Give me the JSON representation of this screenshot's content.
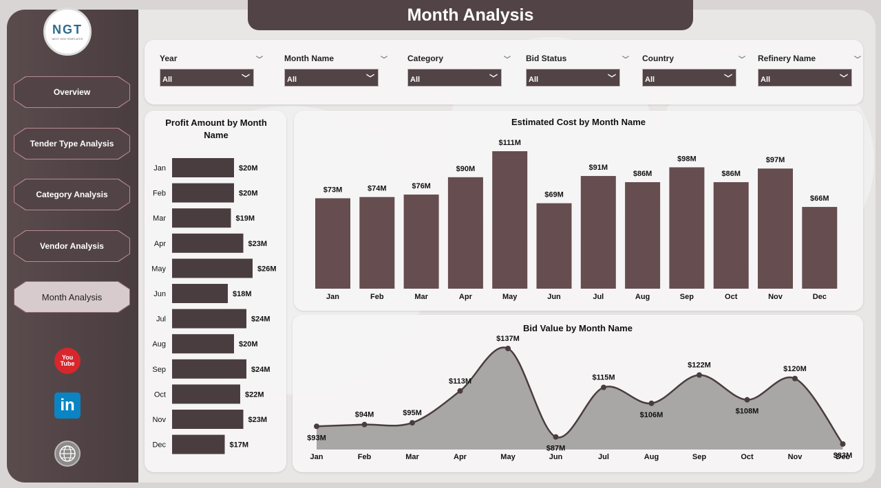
{
  "page_title": "Month Analysis",
  "logo": {
    "text": "NGT",
    "subtext": "NEXT GEN TEMPLATES"
  },
  "nav": [
    {
      "label": "Overview",
      "active": false
    },
    {
      "label": "Tender Type Analysis",
      "active": false
    },
    {
      "label": "Category Analysis",
      "active": false
    },
    {
      "label": "Vendor Analysis",
      "active": false
    },
    {
      "label": "Month Analysis",
      "active": true
    }
  ],
  "social": {
    "youtube": "You Tube",
    "linkedin": "in"
  },
  "filters": [
    {
      "label": "Year",
      "value": "All"
    },
    {
      "label": "Month Name",
      "value": "All"
    },
    {
      "label": "Category",
      "value": "All"
    },
    {
      "label": "Bid Status",
      "value": "All"
    },
    {
      "label": "Country",
      "value": "All"
    },
    {
      "label": "Refinery Name",
      "value": "All"
    }
  ],
  "colors": {
    "bar_dark": "#4a3d40",
    "bar_col": "#654d50",
    "area": "#a9a6a6",
    "line": "#4a3d40"
  },
  "chart_data": [
    {
      "type": "bar",
      "orientation": "horizontal",
      "title": "Profit Amount by Month Name",
      "categories": [
        "Jan",
        "Feb",
        "Mar",
        "Apr",
        "May",
        "Jun",
        "Jul",
        "Aug",
        "Sep",
        "Oct",
        "Nov",
        "Dec"
      ],
      "values": [
        20,
        20,
        19,
        23,
        26,
        18,
        24,
        20,
        24,
        22,
        23,
        17
      ],
      "labels": [
        "$20M",
        "$20M",
        "$19M",
        "$23M",
        "$26M",
        "$18M",
        "$24M",
        "$20M",
        "$24M",
        "$22M",
        "$23M",
        "$17M"
      ],
      "unit": "$M",
      "xlim": [
        0,
        26
      ]
    },
    {
      "type": "bar",
      "title": "Estimated Cost by Month Name",
      "categories": [
        "Jan",
        "Feb",
        "Mar",
        "Apr",
        "May",
        "Jun",
        "Jul",
        "Aug",
        "Sep",
        "Oct",
        "Nov",
        "Dec"
      ],
      "values": [
        73,
        74,
        76,
        90,
        111,
        69,
        91,
        86,
        98,
        86,
        97,
        66
      ],
      "labels": [
        "$73M",
        "$74M",
        "$76M",
        "$90M",
        "$111M",
        "$69M",
        "$91M",
        "$86M",
        "$98M",
        "$86M",
        "$97M",
        "$66M"
      ],
      "unit": "$M",
      "ylim": [
        0,
        111
      ]
    },
    {
      "type": "area",
      "title": "Bid Value by Month Name",
      "categories": [
        "Jan",
        "Feb",
        "Mar",
        "Apr",
        "May",
        "Jun",
        "Jul",
        "Aug",
        "Sep",
        "Oct",
        "Nov",
        "Dec"
      ],
      "values": [
        93,
        94,
        95,
        113,
        137,
        87,
        115,
        106,
        122,
        108,
        120,
        83
      ],
      "labels": [
        "$93M",
        "$94M",
        "$95M",
        "$113M",
        "$137M",
        "$87M",
        "$115M",
        "$106M",
        "$122M",
        "$108M",
        "$120M",
        "$83M"
      ],
      "unit": "$M",
      "ylim": [
        83,
        137
      ]
    }
  ]
}
